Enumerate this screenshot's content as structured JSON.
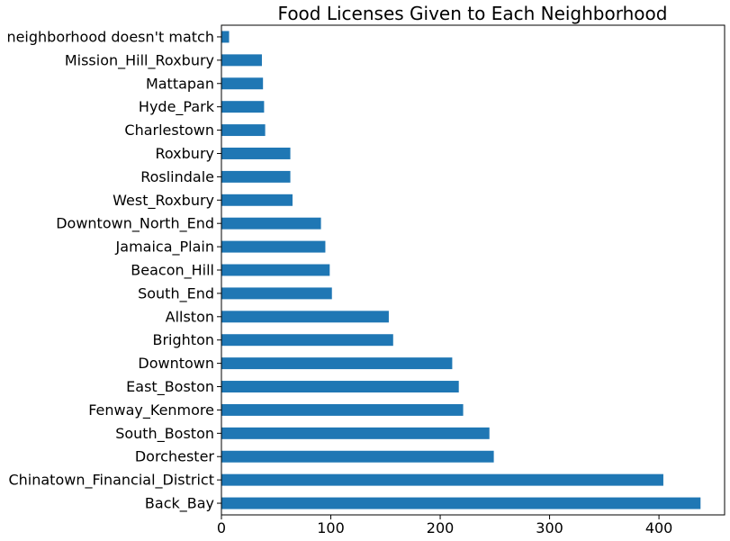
{
  "chart_data": {
    "type": "bar",
    "orientation": "horizontal",
    "title": "Food Licenses Given to Each Neighborhood",
    "xlabel": "",
    "ylabel": "",
    "categories": [
      "Back_Bay",
      "Chinatown_Financial_District",
      "Dorchester",
      "South_Boston",
      "Fenway_Kenmore",
      "East_Boston",
      "Downtown",
      "Brighton",
      "Allston",
      "South_End",
      "Beacon_Hill",
      "Jamaica_Plain",
      "Downtown_North_End",
      "West_Roxbury",
      "Roslindale",
      "Roxbury",
      "Charlestown",
      "Hyde_Park",
      "Mattapan",
      "Mission_Hill_Roxbury",
      "neighborhood doesn't match"
    ],
    "values": [
      438,
      404,
      249,
      245,
      221,
      217,
      211,
      157,
      153,
      101,
      99,
      95,
      91,
      65,
      63,
      63,
      40,
      39,
      38,
      37,
      7
    ],
    "xlim": [
      0,
      460
    ],
    "xticks": [
      0,
      100,
      200,
      300,
      400
    ],
    "bar_color": "#1f77b4",
    "grid": false,
    "legend": "none"
  }
}
